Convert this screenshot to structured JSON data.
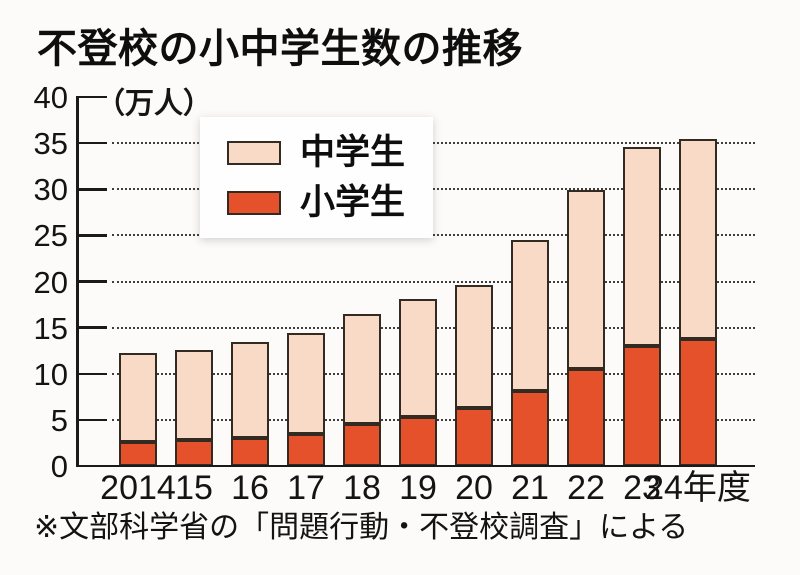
{
  "title": "不登校の小中学生数の推移",
  "y_axis": {
    "unit_label": "（万人）",
    "tick_labels": [
      "0",
      "5",
      "10",
      "15",
      "20",
      "25",
      "30",
      "35",
      "40"
    ]
  },
  "x_axis": {
    "tick_labels": [
      "2014",
      "15",
      "16",
      "17",
      "18",
      "19",
      "20",
      "21",
      "22",
      "23",
      "24年度"
    ]
  },
  "legend": {
    "items": [
      {
        "label": "中学生",
        "color": "#f8dac6"
      },
      {
        "label": "小学生",
        "color": "#e5512b"
      }
    ]
  },
  "source_note": "※文部科学省の「問題行動・不登校調査」による",
  "colors": {
    "junior_high": "#f8dac6",
    "elementary": "#e5512b",
    "bar_border": "#332a22",
    "axis": "#1a1a1a",
    "background": "#fcfbf9"
  },
  "chart_data": {
    "type": "bar",
    "stacked": true,
    "title": "不登校の小中学生数の推移",
    "ylabel": "（万人）",
    "xlabel": "年度",
    "categories": [
      "2014",
      "15",
      "16",
      "17",
      "18",
      "19",
      "20",
      "21",
      "22",
      "23",
      "24年度"
    ],
    "series": [
      {
        "name": "小学生",
        "color": "#e5512b",
        "values": [
          2.6,
          2.8,
          3.0,
          3.5,
          4.5,
          5.3,
          6.3,
          8.1,
          10.5,
          13.0,
          13.8
        ]
      },
      {
        "name": "中学生",
        "color": "#f8dac6",
        "values": [
          9.7,
          9.8,
          10.4,
          10.9,
          12.0,
          12.8,
          13.3,
          16.4,
          19.4,
          21.6,
          21.6
        ]
      }
    ],
    "totals": [
      12.3,
      12.6,
      13.4,
      14.4,
      16.5,
      18.1,
      19.6,
      24.5,
      29.9,
      34.6,
      35.4
    ],
    "ylim": [
      0,
      40
    ],
    "ytick_interval": 5,
    "grid": "horizontal-dotted",
    "legend_position": "top-left-inside",
    "source": "※文部科学省の「問題行動・不登校調査」による"
  }
}
